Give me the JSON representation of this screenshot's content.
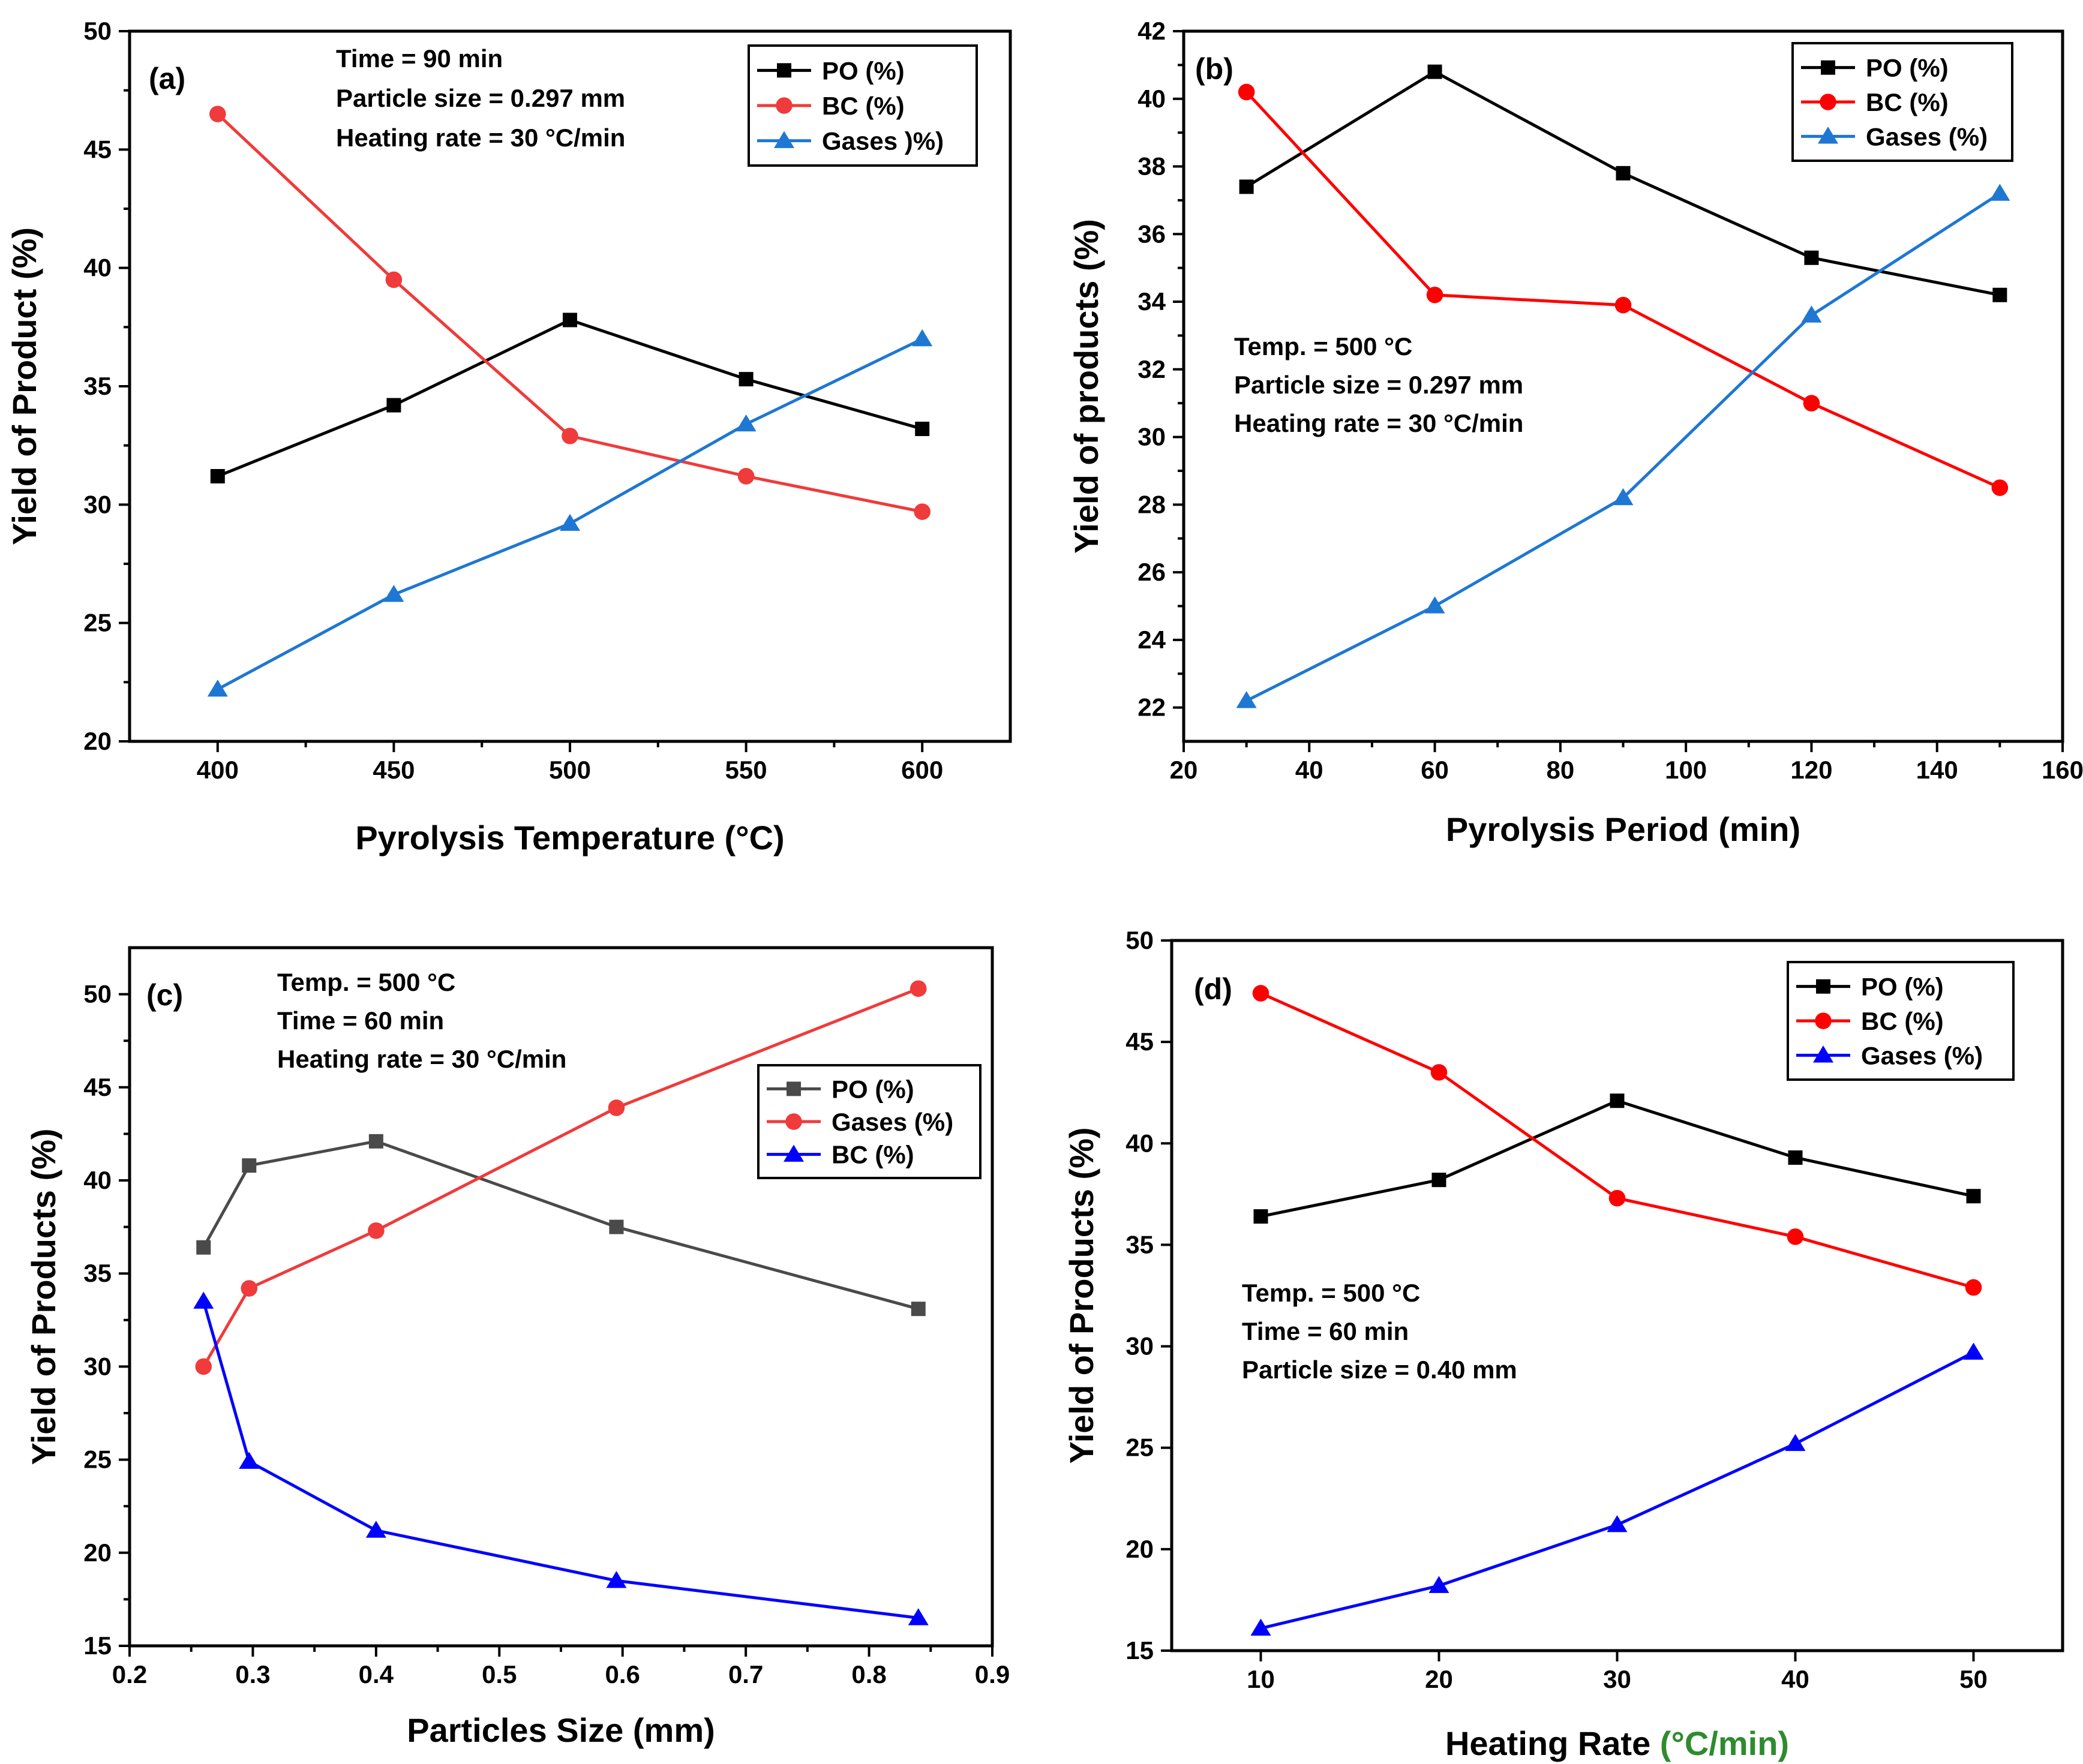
{
  "chart_data": [
    {
      "type": "line",
      "panel_label": "(a)",
      "xlabel": "Pyrolysis Temperature (°C)",
      "xlabel_unit_color": null,
      "ylabel": "Yield of Product (%)",
      "xlim": [
        375,
        625
      ],
      "ylim": [
        20,
        50
      ],
      "xticks": [
        400,
        450,
        500,
        550,
        600
      ],
      "yticks": [
        20,
        25,
        30,
        35,
        40,
        45,
        50
      ],
      "x": [
        400,
        450,
        500,
        550,
        600
      ],
      "annotations": [
        "Time = 90 min",
        "Particle size =  0.297 mm",
        "Heating rate = 30 °C/min"
      ],
      "legend_position": "top-right",
      "series": [
        {
          "name": "PO (%)",
          "color": "#000000",
          "marker": "square",
          "values": [
            31.2,
            34.2,
            37.8,
            35.3,
            33.2
          ]
        },
        {
          "name": "BC (%)",
          "color": "#ef3b3b",
          "marker": "circle",
          "values": [
            46.5,
            39.5,
            32.9,
            31.2,
            29.7
          ]
        },
        {
          "name": "Gases )%)",
          "color": "#1e77d3",
          "marker": "triangle",
          "values": [
            22.2,
            26.2,
            29.2,
            33.4,
            37.0
          ]
        }
      ]
    },
    {
      "type": "line",
      "panel_label": "(b)",
      "xlabel": "Pyrolysis Period (min)",
      "xlabel_unit_color": null,
      "ylabel": "Yield of products (%)",
      "xlim": [
        20,
        160
      ],
      "ylim": [
        21,
        42
      ],
      "xticks": [
        20,
        40,
        60,
        80,
        100,
        120,
        140,
        160
      ],
      "yticks": [
        22,
        24,
        26,
        28,
        30,
        32,
        34,
        36,
        38,
        40,
        42
      ],
      "x": [
        30,
        60,
        90,
        120,
        150
      ],
      "annotations": [
        "Temp. = 500 °C",
        "Particle size =  0.297 mm",
        "Heating rate = 30 °C/min"
      ],
      "legend_position": "top-right",
      "series": [
        {
          "name": "PO (%)",
          "color": "#000000",
          "marker": "square",
          "values": [
            37.4,
            40.8,
            37.8,
            35.3,
            34.2
          ]
        },
        {
          "name": "BC (%)",
          "color": "#ff0000",
          "marker": "circle",
          "values": [
            40.2,
            34.2,
            33.9,
            31.0,
            28.5
          ]
        },
        {
          "name": "Gases (%)",
          "color": "#1e77d3",
          "marker": "triangle",
          "values": [
            22.2,
            25.0,
            28.2,
            33.6,
            37.2
          ]
        }
      ]
    },
    {
      "type": "line",
      "panel_label": "(c)",
      "xlabel": "Particles Size (mm)",
      "xlabel_unit_color": null,
      "ylabel": "Yield of Products (%)",
      "xlim": [
        0.2,
        0.9
      ],
      "ylim": [
        15,
        52.5
      ],
      "xticks": [
        0.2,
        0.3,
        0.4,
        0.5,
        0.6,
        0.7,
        0.8,
        0.9
      ],
      "yticks": [
        15,
        20,
        25,
        30,
        35,
        40,
        45,
        50
      ],
      "x": [
        0.26,
        0.297,
        0.4,
        0.595,
        0.84
      ],
      "annotations": [
        "Temp. = 500 °C",
        "Time = 60 min",
        "Heating rate = 30 °C/min"
      ],
      "legend_position": "right",
      "series": [
        {
          "name": "PO (%)",
          "color": "#4a4a4a",
          "marker": "square",
          "values": [
            36.4,
            40.8,
            42.1,
            37.5,
            33.1
          ]
        },
        {
          "name": "Gases (%)",
          "color": "#ef3b3b",
          "marker": "circle",
          "values": [
            30.0,
            34.2,
            37.3,
            43.9,
            50.3
          ]
        },
        {
          "name": "BC (%)",
          "color": "#0000ff",
          "marker": "triangle",
          "values": [
            33.5,
            24.9,
            21.2,
            18.5,
            16.5
          ]
        }
      ]
    },
    {
      "type": "line",
      "panel_label": "(d)",
      "xlabel": "Heating Rate ",
      "xlabel_unit": "(°C/min)",
      "xlabel_unit_color": "#2e8b2e",
      "ylabel": "Yield of Products (%)",
      "xlim": [
        5,
        55
      ],
      "ylim": [
        15,
        50
      ],
      "xticks": [
        10,
        20,
        30,
        40,
        50
      ],
      "yticks": [
        15,
        20,
        25,
        30,
        35,
        40,
        45,
        50
      ],
      "x": [
        10,
        20,
        30,
        40,
        50
      ],
      "annotations": [
        "Temp. = 500 °C",
        "Time = 60 min",
        "Particle size = 0.40 mm"
      ],
      "legend_position": "top-right",
      "series": [
        {
          "name": "PO (%)",
          "color": "#000000",
          "marker": "square",
          "values": [
            36.4,
            38.2,
            42.1,
            39.3,
            37.4
          ]
        },
        {
          "name": "BC (%)",
          "color": "#ff0000",
          "marker": "circle",
          "values": [
            47.4,
            43.5,
            37.3,
            35.4,
            32.9
          ]
        },
        {
          "name": "Gases (%)",
          "color": "#0000ff",
          "marker": "triangle",
          "values": [
            16.1,
            18.2,
            21.2,
            25.2,
            29.7
          ]
        }
      ]
    }
  ]
}
